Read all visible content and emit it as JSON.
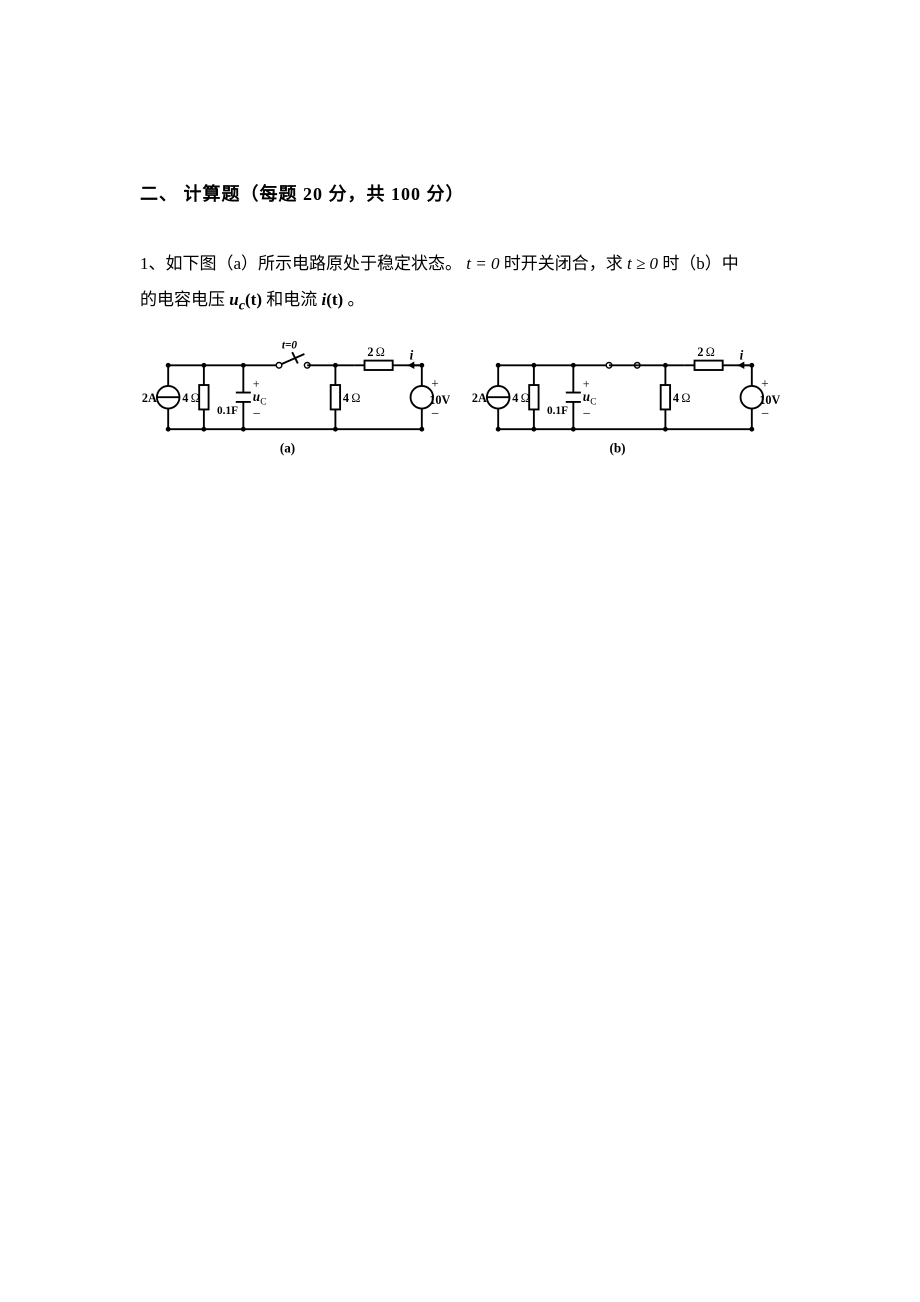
{
  "section": {
    "heading": "二、 计算题（每题 20 分，共 100 分）"
  },
  "problem": {
    "intro_part1": "1、如下图（a）所示电路原处于稳定状态。",
    "t0": "t = 0",
    "intro_part2": "时开关闭合，求",
    "tge0": "t ≥ 0",
    "intro_part3": "时（b）中",
    "line2_part1": "的电容电压",
    "uc_t": "u",
    "uc_sub": "c",
    "uc_arg": "(t)",
    "line2_part2": "和电流",
    "i_t": "i",
    "i_arg": "(t)",
    "line2_part3": " 。"
  },
  "circuit": {
    "stroke": "#000000",
    "stroke_width": 2,
    "dot_r": 2.6,
    "font": "Times New Roman, serif",
    "label_color": "#000",
    "labels": {
      "Is": "2A",
      "R1": "4",
      "R2": "4",
      "R3": "2",
      "C": "0.1F",
      "uc": "u",
      "uc_sub": "C",
      "Vs": "10V",
      "i": "i",
      "ohm": "Ω",
      "t0": "t=0",
      "cap_a": "(a)",
      "cap_b": "(b)",
      "plus": "+",
      "minus": "−"
    }
  }
}
